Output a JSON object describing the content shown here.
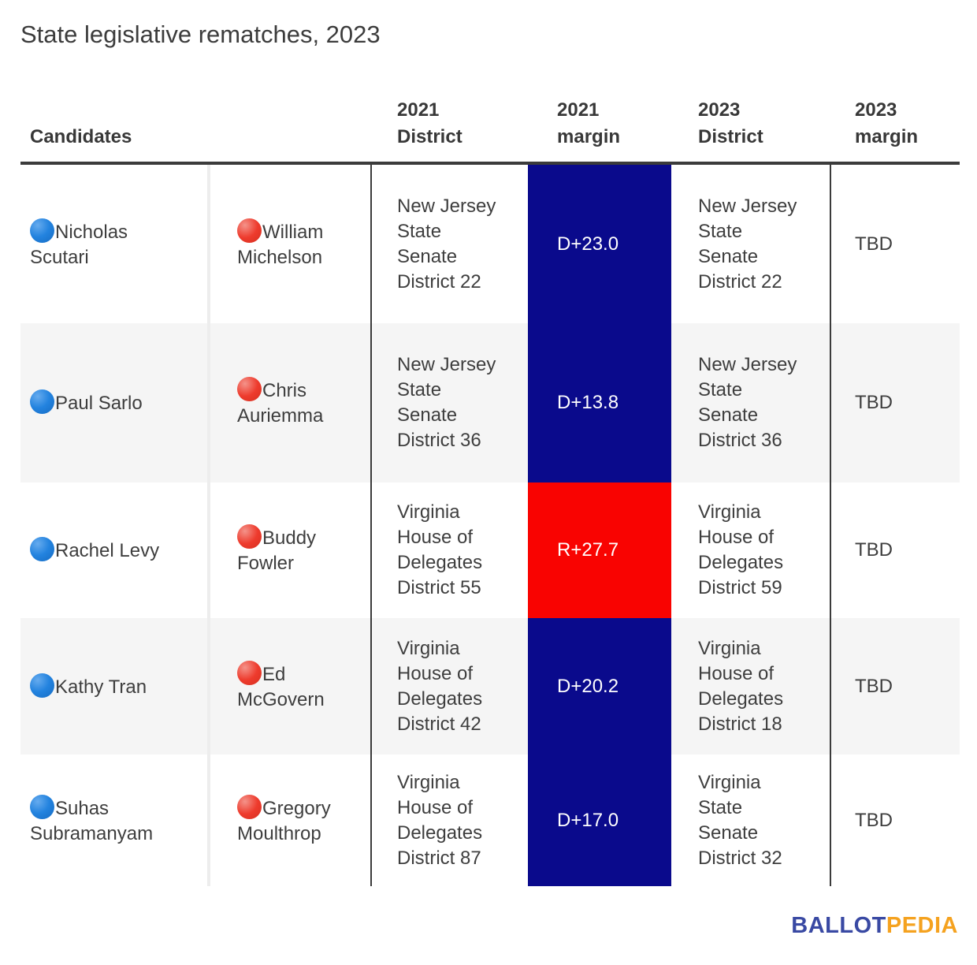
{
  "title": "State legislative rematches, 2023",
  "table": {
    "headers": {
      "candidates": "Candidates",
      "district_2021": "2021\nDistrict",
      "margin_2021": "2021\nmargin",
      "district_2023": "2023\nDistrict",
      "margin_2023": "2023\nmargin"
    },
    "rows": [
      {
        "dem": "Nicholas Scutari",
        "rep": "William Michelson",
        "district_2021": "New Jersey State Senate District 22",
        "margin_2021": "D+23.0",
        "margin_2021_party": "D",
        "district_2023": "New Jersey State Senate District 22",
        "margin_2023": "TBD"
      },
      {
        "dem": "Paul Sarlo",
        "rep": "Chris Auriemma",
        "district_2021": "New Jersey State Senate District 36",
        "margin_2021": "D+13.8",
        "margin_2021_party": "D",
        "district_2023": "New Jersey State Senate District 36",
        "margin_2023": "TBD"
      },
      {
        "dem": "Rachel Levy",
        "rep": "Buddy Fowler",
        "district_2021": "Virginia House of Delegates District 55",
        "margin_2021": "R+27.7",
        "margin_2021_party": "R",
        "district_2023": "Virginia House of Delegates District 59",
        "margin_2023": "TBD"
      },
      {
        "dem": "Kathy Tran",
        "rep": "Ed McGovern",
        "district_2021": "Virginia House of Delegates District 42",
        "margin_2021": "D+20.2",
        "margin_2021_party": "D",
        "district_2023": "Virginia House of Delegates District 18",
        "margin_2023": "TBD"
      },
      {
        "dem": "Suhas Subramanyam",
        "rep": "Gregory Moulthrop",
        "district_2021": "Virginia House of Delegates District 87",
        "margin_2021": "D+17.0",
        "margin_2021_party": "D",
        "district_2023": "Virginia State Senate District 32",
        "margin_2023": "TBD"
      }
    ]
  },
  "colors": {
    "dem_margin_bg": "#0a0a8c",
    "rep_margin_bg": "#f90301",
    "dem_dot": "#2383df",
    "rep_dot": "#ee3b2d",
    "row_stripe": "#f5f5f5",
    "rule_dark": "#3b3b3b",
    "logo_blue": "#3949a3",
    "logo_gold": "#f5a21f",
    "margin_text": "#ffffff"
  },
  "footer": {
    "logo_blue_text": "BALLOT",
    "logo_gold_text": "PEDIA"
  },
  "chart_data": {
    "type": "table",
    "title": "State legislative rematches, 2023",
    "columns": [
      "Candidates (Democrat)",
      "Candidates (Republican)",
      "2021 District",
      "2021 margin",
      "2023 District",
      "2023 margin"
    ],
    "rows": [
      [
        "Nicholas Scutari",
        "William Michelson",
        "New Jersey State Senate District 22",
        "D+23.0",
        "New Jersey State Senate District 22",
        "TBD"
      ],
      [
        "Paul Sarlo",
        "Chris Auriemma",
        "New Jersey State Senate District 36",
        "D+13.8",
        "New Jersey State Senate District 36",
        "TBD"
      ],
      [
        "Rachel Levy",
        "Buddy Fowler",
        "Virginia House of Delegates District 55",
        "R+27.7",
        "Virginia House of Delegates District 59",
        "TBD"
      ],
      [
        "Kathy Tran",
        "Ed McGovern",
        "Virginia House of Delegates District 42",
        "D+20.2",
        "Virginia House of Delegates District 18",
        "TBD"
      ],
      [
        "Suhas Subramanyam",
        "Gregory Moulthrop",
        "Virginia House of Delegates District 87",
        "D+17.0",
        "Virginia State Senate District 32",
        "TBD"
      ]
    ],
    "margin_values": [
      23.0,
      13.8,
      -27.7,
      20.2,
      17.0
    ],
    "margin_winner_party": [
      "D",
      "D",
      "R",
      "D",
      "D"
    ]
  }
}
